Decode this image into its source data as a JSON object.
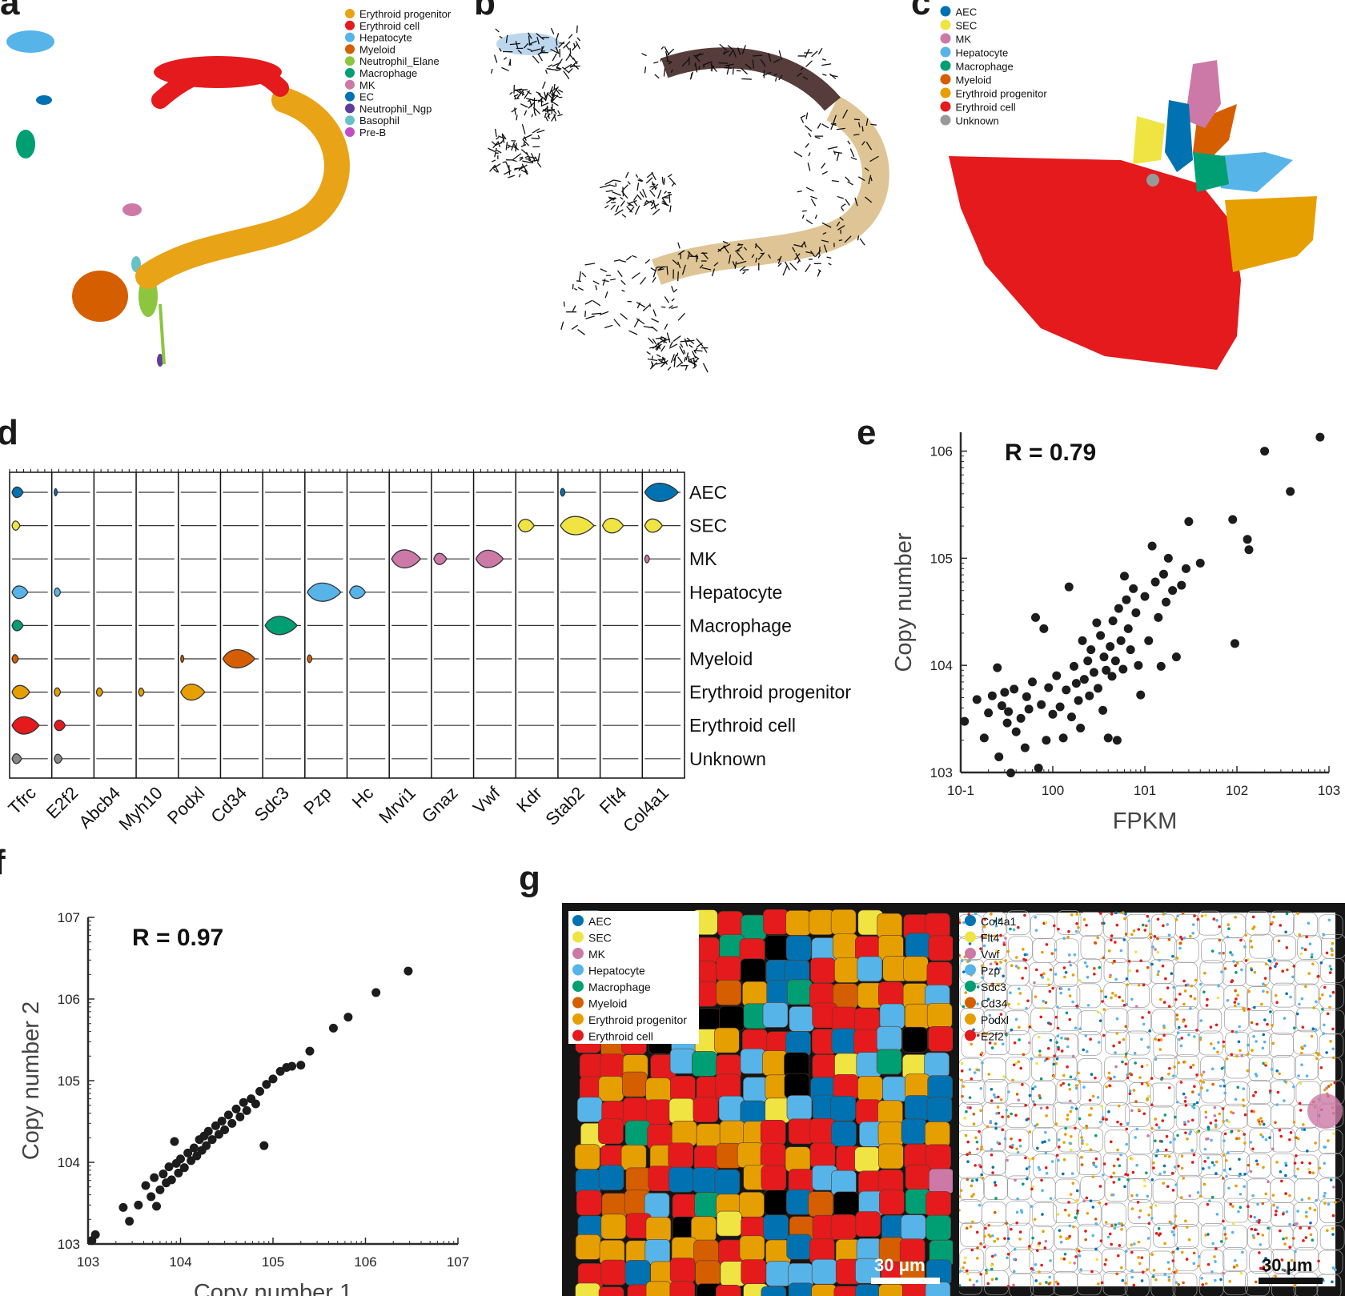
{
  "panels": {
    "a": {
      "letter": "a",
      "legend": [
        {
          "name": "Erythroid progenitor",
          "color": "#E8A317"
        },
        {
          "name": "Erythroid cell",
          "color": "#E41A1C"
        },
        {
          "name": "Hepatocyte",
          "color": "#56B4E9"
        },
        {
          "name": "Myeloid",
          "color": "#D55E00"
        },
        {
          "name": "Neutrophil_Elane",
          "color": "#8CC63F"
        },
        {
          "name": "Macrophage",
          "color": "#009E73"
        },
        {
          "name": "MK",
          "color": "#CC79A7"
        },
        {
          "name": "EC",
          "color": "#0072B2"
        },
        {
          "name": "Neutrophil_Ngp",
          "color": "#5E3C99"
        },
        {
          "name": "Basophil",
          "color": "#66C2C8"
        },
        {
          "name": "Pre-B",
          "color": "#C24EC4"
        }
      ]
    },
    "b": {
      "letter": "b"
    },
    "c": {
      "letter": "c",
      "legend": [
        {
          "name": "AEC",
          "color": "#0072B2"
        },
        {
          "name": "SEC",
          "color": "#F0E442"
        },
        {
          "name": "MK",
          "color": "#CC79A7"
        },
        {
          "name": "Hepatocyte",
          "color": "#56B4E9"
        },
        {
          "name": "Macrophage",
          "color": "#009E73"
        },
        {
          "name": "Myeloid",
          "color": "#D55E00"
        },
        {
          "name": "Erythroid progenitor",
          "color": "#E69F00"
        },
        {
          "name": "Erythroid cell",
          "color": "#E41A1C"
        },
        {
          "name": "Unknown",
          "color": "#999999"
        }
      ]
    },
    "d": {
      "letter": "d",
      "genes": [
        "Tfrc",
        "E2f2",
        "Abcb4",
        "Myh10",
        "Podxl",
        "Cd34",
        "Sdc3",
        "Pzp",
        "Hc",
        "Mrvi1",
        "Gnaz",
        "Vwf",
        "Kdr",
        "Stab2",
        "Flt4",
        "Col4a1"
      ],
      "cell_types": [
        {
          "name": "AEC",
          "color": "#0072B2"
        },
        {
          "name": "SEC",
          "color": "#F0E442"
        },
        {
          "name": "MK",
          "color": "#CC79A7"
        },
        {
          "name": "Hepatocyte",
          "color": "#56B4E9"
        },
        {
          "name": "Macrophage",
          "color": "#009E73"
        },
        {
          "name": "Myeloid",
          "color": "#D55E00"
        },
        {
          "name": "Erythroid progenitor",
          "color": "#E69F00"
        },
        {
          "name": "Erythroid cell",
          "color": "#E41A1C"
        },
        {
          "name": "Unknown",
          "color": "#888888"
        }
      ]
    },
    "e": {
      "letter": "e",
      "r_label": "R = 0.79",
      "xlabel": "FPKM",
      "ylabel": "Copy number"
    },
    "f": {
      "letter": "f",
      "r_label": "R = 0.97",
      "xlabel": "Copy number 1",
      "ylabel": "Copy number 2"
    },
    "g": {
      "letter": "g",
      "legend_left": [
        {
          "name": "AEC",
          "color": "#0072B2"
        },
        {
          "name": "SEC",
          "color": "#F0E442"
        },
        {
          "name": "MK",
          "color": "#CC79A7"
        },
        {
          "name": "Hepatocyte",
          "color": "#56B4E9"
        },
        {
          "name": "Macrophage",
          "color": "#009E73"
        },
        {
          "name": "Myeloid",
          "color": "#D55E00"
        },
        {
          "name": "Erythroid progenitor",
          "color": "#E69F00"
        },
        {
          "name": "Erythroid cell",
          "color": "#E41A1C"
        }
      ],
      "legend_right": [
        {
          "name": "Col4a1",
          "color": "#0072B2"
        },
        {
          "name": "Flt4",
          "color": "#F0E442"
        },
        {
          "name": "Vwf",
          "color": "#CC79A7"
        },
        {
          "name": "Pzp",
          "color": "#56B4E9"
        },
        {
          "name": "Sdc3",
          "color": "#009E73"
        },
        {
          "name": "Cd34",
          "color": "#D55E00"
        },
        {
          "name": "Podxl",
          "color": "#E69F00"
        },
        {
          "name": "E2f2",
          "color": "#E41A1C"
        }
      ],
      "scale_label_left": "30 μm",
      "scale_label_right": "30 μm"
    }
  },
  "chart_data": [
    {
      "type": "scatter",
      "panel": "e",
      "title": "",
      "xlabel": "FPKM",
      "ylabel": "Copy number",
      "x_scale": "log",
      "y_scale": "log",
      "xlim": [
        0.1,
        1000
      ],
      "ylim": [
        1000,
        1500000
      ],
      "x_tick_labels": [
        "10-1",
        "100",
        "101",
        "102",
        "103"
      ],
      "y_tick_labels": [
        "103",
        "104",
        "105",
        "106"
      ],
      "annotation": "R = 0.79",
      "points": [
        [
          0.11,
          3000
        ],
        [
          0.15,
          4800
        ],
        [
          0.18,
          2100
        ],
        [
          0.2,
          3600
        ],
        [
          0.22,
          5200
        ],
        [
          0.25,
          9500
        ],
        [
          0.26,
          1400
        ],
        [
          0.28,
          4200
        ],
        [
          0.3,
          5600
        ],
        [
          0.32,
          2900
        ],
        [
          0.33,
          3700
        ],
        [
          0.35,
          990
        ],
        [
          0.38,
          6000
        ],
        [
          0.4,
          2400
        ],
        [
          0.45,
          3200
        ],
        [
          0.5,
          1700
        ],
        [
          0.52,
          5100
        ],
        [
          0.55,
          3900
        ],
        [
          0.6,
          7000
        ],
        [
          0.65,
          28000
        ],
        [
          0.7,
          1100
        ],
        [
          0.75,
          4300
        ],
        [
          0.8,
          22000
        ],
        [
          0.85,
          2000
        ],
        [
          0.9,
          6200
        ],
        [
          1.0,
          3500
        ],
        [
          1.1,
          8000
        ],
        [
          1.2,
          4100
        ],
        [
          1.3,
          2100
        ],
        [
          1.4,
          5900
        ],
        [
          1.5,
          54000
        ],
        [
          1.6,
          3300
        ],
        [
          1.7,
          9800
        ],
        [
          1.8,
          6800
        ],
        [
          1.9,
          4700
        ],
        [
          2.0,
          2600
        ],
        [
          2.1,
          17000
        ],
        [
          2.2,
          7400
        ],
        [
          2.4,
          11000
        ],
        [
          2.5,
          5200
        ],
        [
          2.6,
          14000
        ],
        [
          2.8,
          8600
        ],
        [
          3.0,
          25000
        ],
        [
          3.1,
          6100
        ],
        [
          3.3,
          19000
        ],
        [
          3.5,
          3800
        ],
        [
          3.6,
          12000
        ],
        [
          3.8,
          9000
        ],
        [
          4.0,
          2100
        ],
        [
          4.2,
          15000
        ],
        [
          4.4,
          7900
        ],
        [
          4.5,
          26000
        ],
        [
          4.8,
          11000
        ],
        [
          5.0,
          2000
        ],
        [
          5.2,
          34000
        ],
        [
          5.5,
          17000
        ],
        [
          5.8,
          9200
        ],
        [
          6.0,
          68000
        ],
        [
          6.3,
          41000
        ],
        [
          6.6,
          22000
        ],
        [
          7.0,
          14000
        ],
        [
          7.5,
          52000
        ],
        [
          8.0,
          31000
        ],
        [
          8.5,
          10000
        ],
        [
          9.0,
          5300
        ],
        [
          10.0,
          44000
        ],
        [
          11.0,
          17000
        ],
        [
          12.0,
          130000
        ],
        [
          13.0,
          60000
        ],
        [
          14.0,
          28000
        ],
        [
          15.0,
          9800
        ],
        [
          16.0,
          71000
        ],
        [
          17.0,
          39000
        ],
        [
          18.0,
          100000
        ],
        [
          20.0,
          50000
        ],
        [
          22.0,
          12000
        ],
        [
          25.0,
          56000
        ],
        [
          28.0,
          80000
        ],
        [
          30.0,
          220000
        ],
        [
          40.0,
          90000
        ],
        [
          90.0,
          230000
        ],
        [
          95.0,
          16000
        ],
        [
          130.0,
          150000
        ],
        [
          135.0,
          120000
        ],
        [
          200.0,
          1000000
        ],
        [
          380.0,
          420000
        ],
        [
          800.0,
          1350000
        ]
      ]
    },
    {
      "type": "scatter",
      "panel": "f",
      "title": "",
      "xlabel": "Copy number 1",
      "ylabel": "Copy number 2",
      "x_scale": "log",
      "y_scale": "log",
      "xlim": [
        1000,
        10000000
      ],
      "ylim": [
        1000,
        10000000
      ],
      "x_tick_labels": [
        "103",
        "104",
        "105",
        "106",
        "107"
      ],
      "y_tick_labels": [
        "103",
        "104",
        "105",
        "106",
        "107"
      ],
      "annotation": "R = 0.97",
      "points": [
        [
          1100,
          1100
        ],
        [
          1200,
          1300
        ],
        [
          2400,
          2800
        ],
        [
          2800,
          1900
        ],
        [
          3500,
          3000
        ],
        [
          4200,
          5200
        ],
        [
          4800,
          3800
        ],
        [
          5200,
          6500
        ],
        [
          5500,
          2900
        ],
        [
          6000,
          4600
        ],
        [
          6500,
          7200
        ],
        [
          7000,
          5600
        ],
        [
          7500,
          8800
        ],
        [
          8000,
          6100
        ],
        [
          8600,
          18000
        ],
        [
          9000,
          9700
        ],
        [
          9500,
          7400
        ],
        [
          10000,
          11000
        ],
        [
          11000,
          8600
        ],
        [
          12000,
          13000
        ],
        [
          13000,
          10500
        ],
        [
          14000,
          15000
        ],
        [
          15000,
          12000
        ],
        [
          16000,
          19000
        ],
        [
          17000,
          14000
        ],
        [
          18000,
          21000
        ],
        [
          19000,
          16000
        ],
        [
          20000,
          24000
        ],
        [
          22000,
          19000
        ],
        [
          24000,
          28000
        ],
        [
          26000,
          22000
        ],
        [
          28000,
          32000
        ],
        [
          30000,
          25000
        ],
        [
          33000,
          38000
        ],
        [
          36000,
          30000
        ],
        [
          40000,
          45000
        ],
        [
          44000,
          36000
        ],
        [
          48000,
          54000
        ],
        [
          52000,
          43000
        ],
        [
          58000,
          60000
        ],
        [
          65000,
          52000
        ],
        [
          72000,
          74000
        ],
        [
          80000,
          16000
        ],
        [
          85000,
          90000
        ],
        [
          100000,
          105000
        ],
        [
          120000,
          130000
        ],
        [
          140000,
          145000
        ],
        [
          160000,
          150000
        ],
        [
          200000,
          155000
        ],
        [
          250000,
          230000
        ],
        [
          450000,
          440000
        ],
        [
          650000,
          600000
        ],
        [
          1300000,
          1200000
        ],
        [
          2900000,
          2200000
        ]
      ]
    }
  ]
}
